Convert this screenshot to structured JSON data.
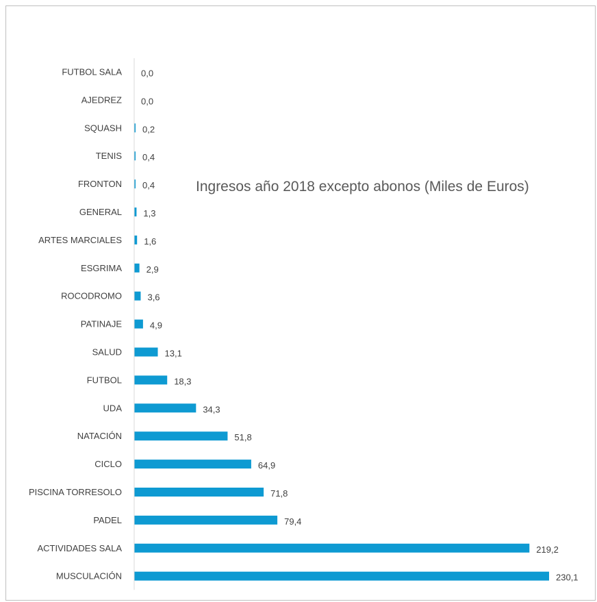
{
  "chart_data": {
    "type": "bar",
    "orientation": "horizontal",
    "title": "Ingresos año 2018 excepto abonos (Miles de Euros)",
    "categories": [
      "FUTBOL SALA",
      "AJEDREZ",
      "SQUASH",
      "TENIS",
      "FRONTON",
      "GENERAL",
      "ARTES MARCIALES",
      "ESGRIMA",
      "ROCODROMO",
      "PATINAJE",
      "SALUD",
      "FUTBOL",
      "UDA",
      "NATACIÓN",
      "CICLO",
      "PISCINA TORRESOLO",
      "PADEL",
      "ACTIVIDADES SALA",
      "MUSCULACIÓN"
    ],
    "values": [
      0.0,
      0.0,
      0.2,
      0.4,
      0.4,
      1.3,
      1.6,
      2.9,
      3.6,
      4.9,
      13.1,
      18.3,
      34.3,
      51.8,
      64.9,
      71.8,
      79.4,
      219.2,
      230.1
    ],
    "value_labels": [
      "0,0",
      "0,0",
      "0,2",
      "0,4",
      "0,4",
      "1,3",
      "1,6",
      "2,9",
      "3,6",
      "4,9",
      "13,1",
      "18,3",
      "34,3",
      "51,8",
      "64,9",
      "71,8",
      "79,4",
      "219,2",
      "230,1"
    ],
    "bar_color": "#0e9ad2",
    "axis_color": "#d9d9d9",
    "xlim": [
      0,
      230.1
    ],
    "grid": false,
    "legend": "none"
  }
}
